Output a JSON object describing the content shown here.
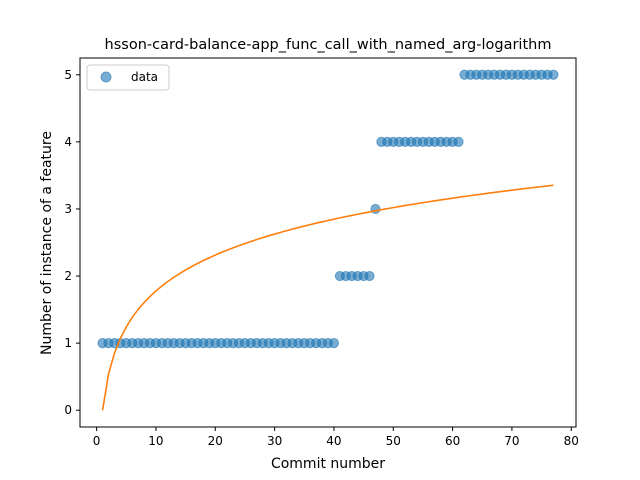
{
  "chart_data": {
    "type": "scatter",
    "title": "hsson-card-balance-app_func_call_with_named_arg-logarithm",
    "xlabel": "Commit number",
    "ylabel": "Number of instance of a feature",
    "xlim": [
      -2.8,
      80.8
    ],
    "ylim": [
      -0.25,
      5.25
    ],
    "xticks": [
      0,
      10,
      20,
      30,
      40,
      50,
      60,
      70,
      80
    ],
    "yticks": [
      0,
      1,
      2,
      3,
      4,
      5
    ],
    "grid": false,
    "legend": {
      "position": "top-left",
      "entries": [
        "data"
      ]
    },
    "colors": {
      "points": "#1f77b4",
      "fit": "#ff7f0e"
    },
    "series": [
      {
        "name": "data",
        "kind": "scatter",
        "points": [
          [
            1,
            1
          ],
          [
            2,
            1
          ],
          [
            3,
            1
          ],
          [
            4,
            1
          ],
          [
            5,
            1
          ],
          [
            6,
            1
          ],
          [
            7,
            1
          ],
          [
            8,
            1
          ],
          [
            9,
            1
          ],
          [
            10,
            1
          ],
          [
            11,
            1
          ],
          [
            12,
            1
          ],
          [
            13,
            1
          ],
          [
            14,
            1
          ],
          [
            15,
            1
          ],
          [
            16,
            1
          ],
          [
            17,
            1
          ],
          [
            18,
            1
          ],
          [
            19,
            1
          ],
          [
            20,
            1
          ],
          [
            21,
            1
          ],
          [
            22,
            1
          ],
          [
            23,
            1
          ],
          [
            24,
            1
          ],
          [
            25,
            1
          ],
          [
            26,
            1
          ],
          [
            27,
            1
          ],
          [
            28,
            1
          ],
          [
            29,
            1
          ],
          [
            30,
            1
          ],
          [
            31,
            1
          ],
          [
            32,
            1
          ],
          [
            33,
            1
          ],
          [
            34,
            1
          ],
          [
            35,
            1
          ],
          [
            36,
            1
          ],
          [
            37,
            1
          ],
          [
            38,
            1
          ],
          [
            39,
            1
          ],
          [
            40,
            1
          ],
          [
            41,
            2
          ],
          [
            42,
            2
          ],
          [
            43,
            2
          ],
          [
            44,
            2
          ],
          [
            45,
            2
          ],
          [
            46,
            2
          ],
          [
            47,
            3
          ],
          [
            48,
            4
          ],
          [
            49,
            4
          ],
          [
            50,
            4
          ],
          [
            51,
            4
          ],
          [
            52,
            4
          ],
          [
            53,
            4
          ],
          [
            54,
            4
          ],
          [
            55,
            4
          ],
          [
            56,
            4
          ],
          [
            57,
            4
          ],
          [
            58,
            4
          ],
          [
            59,
            4
          ],
          [
            60,
            4
          ],
          [
            61,
            4
          ],
          [
            62,
            5
          ],
          [
            63,
            5
          ],
          [
            64,
            5
          ],
          [
            65,
            5
          ],
          [
            66,
            5
          ],
          [
            67,
            5
          ],
          [
            68,
            5
          ],
          [
            69,
            5
          ],
          [
            70,
            5
          ],
          [
            71,
            5
          ],
          [
            72,
            5
          ],
          [
            73,
            5
          ],
          [
            74,
            5
          ],
          [
            75,
            5
          ],
          [
            76,
            5
          ],
          [
            77,
            5
          ]
        ]
      },
      {
        "kind": "line",
        "function": "a*ln(x)",
        "a": 0.772,
        "x_range": [
          1,
          77
        ]
      }
    ]
  }
}
